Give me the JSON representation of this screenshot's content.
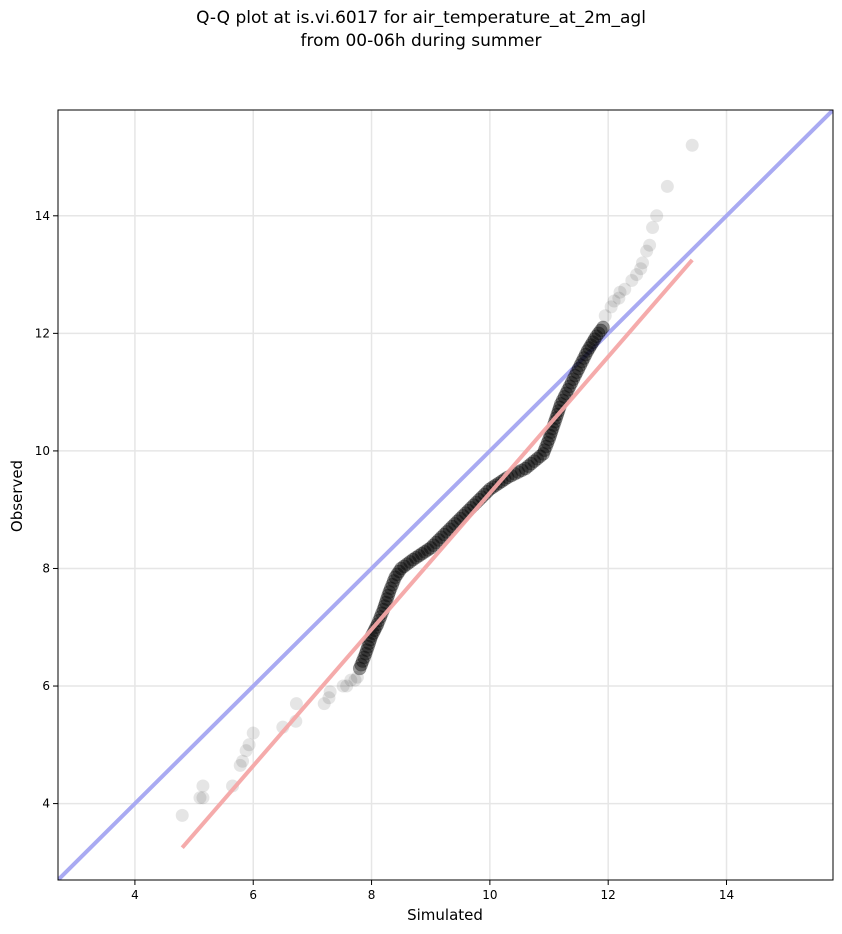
{
  "title": "Q-Q plot at is.vi.6017 for air_temperature_at_2m_agl",
  "subtitle": "from 00-06h during summer",
  "chart_data": {
    "type": "scatter",
    "xlabel": "Simulated",
    "ylabel": "Observed",
    "xlim": [
      2.7,
      15.8
    ],
    "ylim": [
      2.7,
      15.8
    ],
    "xticks": [
      4,
      6,
      8,
      10,
      12,
      14
    ],
    "yticks": [
      4,
      6,
      8,
      10,
      12,
      14
    ],
    "grid": true,
    "point_color": "#000000",
    "point_alpha_core": 0.4,
    "point_alpha_tail": 0.1,
    "identity_line": {
      "from": [
        2.7,
        2.7
      ],
      "to": [
        15.8,
        15.8
      ],
      "color": "#a9aaf2"
    },
    "fit_line": {
      "from": [
        4.8,
        3.25
      ],
      "to": [
        13.42,
        13.25
      ],
      "color": "#f4a6a6"
    },
    "tail_points": {
      "x": [
        4.8,
        5.1,
        5.15,
        5.15,
        5.65,
        5.78,
        5.82,
        5.88,
        5.93,
        6.0,
        6.5,
        6.72,
        6.73,
        7.2,
        7.28,
        7.3,
        7.52,
        7.58,
        7.65,
        7.72,
        7.76,
        11.95,
        12.05,
        12.1,
        12.18,
        12.2,
        12.28,
        12.4,
        12.48,
        12.55,
        12.58,
        12.65,
        12.7,
        12.75,
        12.82,
        13.0,
        13.42
      ],
      "y": [
        3.8,
        4.1,
        4.1,
        4.3,
        4.3,
        4.65,
        4.72,
        4.9,
        5.0,
        5.2,
        5.3,
        5.4,
        5.7,
        5.7,
        5.8,
        5.9,
        6.0,
        6.0,
        6.1,
        6.1,
        6.15,
        12.3,
        12.45,
        12.55,
        12.6,
        12.7,
        12.75,
        12.9,
        13.0,
        13.1,
        13.2,
        13.4,
        13.5,
        13.8,
        14.0,
        14.5,
        15.2
      ]
    },
    "core_curve": {
      "x": [
        7.8,
        7.9,
        8.0,
        8.1,
        8.2,
        8.3,
        8.4,
        8.5,
        8.7,
        9.0,
        9.5,
        10.0,
        10.3,
        10.6,
        10.9,
        11.0,
        11.1,
        11.2,
        11.35,
        11.5,
        11.65,
        11.8,
        11.95
      ],
      "y": [
        6.3,
        6.55,
        6.85,
        7.05,
        7.3,
        7.6,
        7.85,
        8.0,
        8.15,
        8.35,
        8.85,
        9.35,
        9.55,
        9.7,
        9.95,
        10.2,
        10.5,
        10.8,
        11.1,
        11.4,
        11.7,
        11.95,
        12.15
      ]
    }
  }
}
